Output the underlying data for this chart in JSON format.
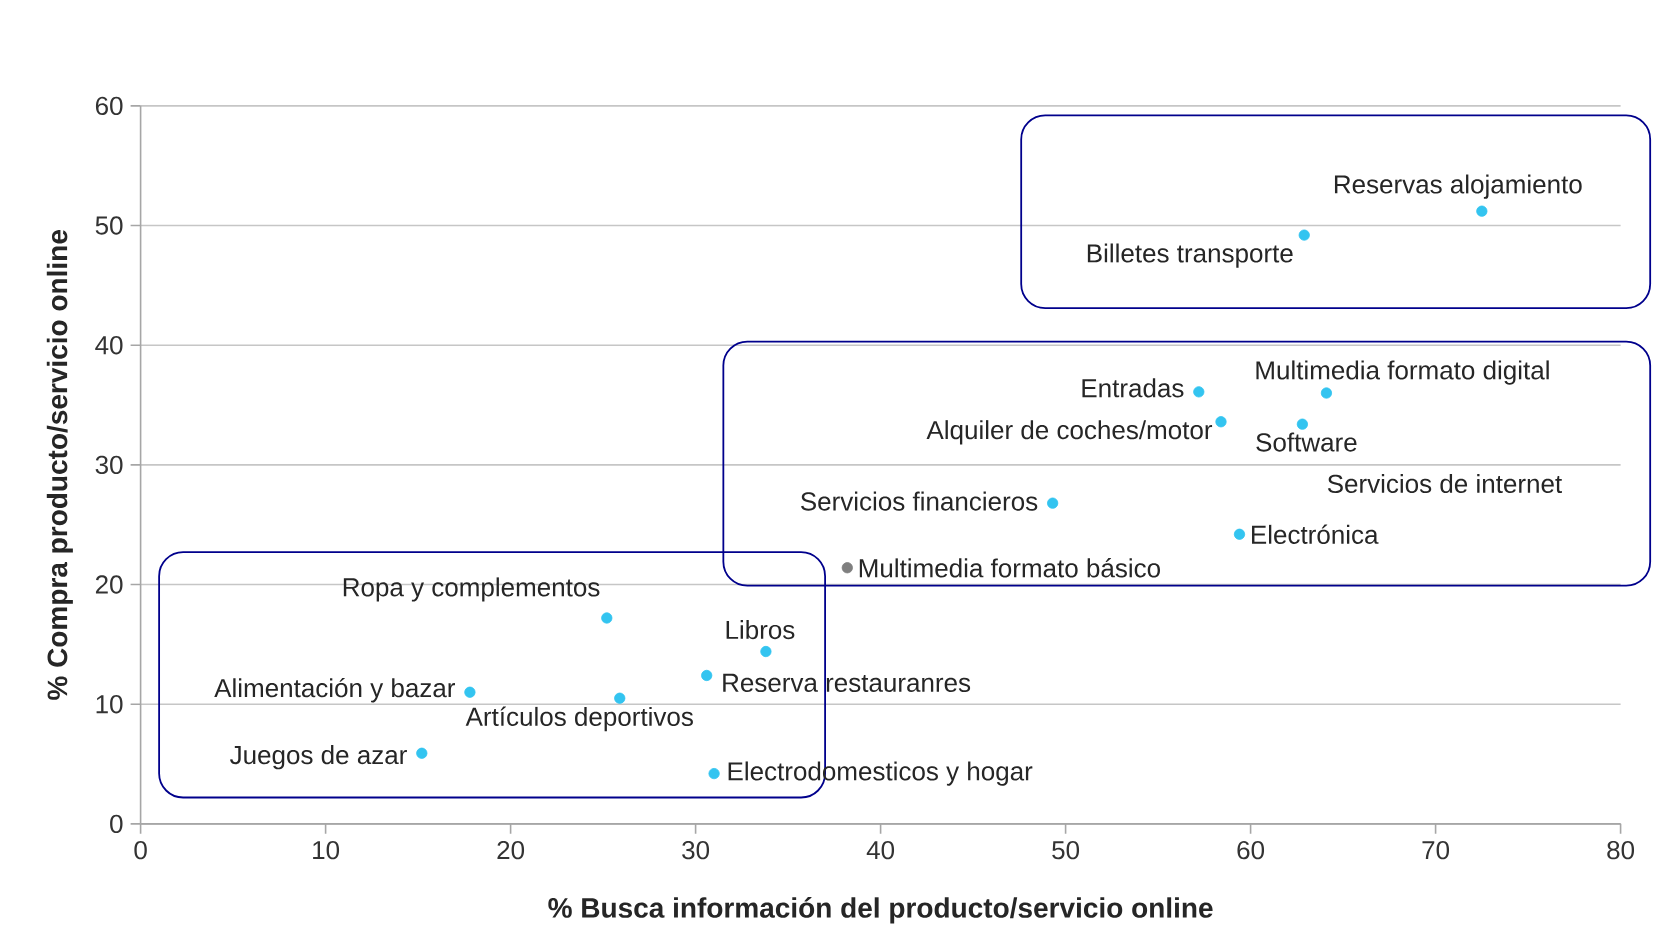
{
  "chart_data": {
    "type": "scatter",
    "xlabel": "% Busca información del  producto/servicio online",
    "ylabel": "% Compra producto/servicio online",
    "x": [
      72.5,
      62.9,
      57.2,
      64.1,
      58.4,
      62.8,
      49.3,
      59.4,
      38.2,
      25.2,
      33.8,
      30.6,
      17.8,
      25.9,
      15.2,
      31.0
    ],
    "values": [
      51.2,
      49.2,
      36.1,
      36.0,
      33.6,
      33.4,
      26.8,
      24.2,
      21.4,
      17.2,
      14.4,
      12.4,
      11.0,
      10.5,
      5.9,
      4.2
    ],
    "colors": [
      "#33c4f0",
      "#33c4f0",
      "#33c4f0",
      "#33c4f0",
      "#33c4f0",
      "#33c4f0",
      "#33c4f0",
      "#33c4f0",
      "#7f7f7f",
      "#33c4f0",
      "#33c4f0",
      "#33c4f0",
      "#33c4f0",
      "#33c4f0",
      "#33c4f0",
      "#33c4f0"
    ],
    "marker": "circle",
    "xlim": [
      0,
      80
    ],
    "xticks": [
      0,
      10,
      20,
      30,
      40,
      50,
      60,
      70,
      80
    ],
    "ylim": [
      0,
      60
    ],
    "yticks": [
      0,
      10,
      20,
      30,
      40,
      50,
      60
    ],
    "grid": "y",
    "annotations": [
      {
        "text": "Reservas alojamiento",
        "x": 72.5,
        "y": 51.2
      },
      {
        "text": "Billetes transporte",
        "x": 62.9,
        "y": 49.2
      },
      {
        "text": "Entradas",
        "x": 57.2,
        "y": 36.1
      },
      {
        "text": "Multimedia formato digital",
        "x": 64.1,
        "y": 36.0
      },
      {
        "text": "Alquiler de coches/motor",
        "x": 58.4,
        "y": 33.6
      },
      {
        "text": "Software",
        "x": 62.8,
        "y": 33.4
      },
      {
        "text": "Servicios financieros",
        "x": 49.3,
        "y": 26.8
      },
      {
        "text": "Electrónica",
        "x": 59.4,
        "y": 24.2
      },
      {
        "text": "Multimedia formato básico",
        "x": 38.2,
        "y": 21.4
      },
      {
        "text": "Ropa y complementos",
        "x": 25.2,
        "y": 17.2
      },
      {
        "text": "Libros",
        "x": 33.8,
        "y": 14.4
      },
      {
        "text": "Reserva restauranres",
        "x": 30.6,
        "y": 12.4
      },
      {
        "text": "Alimentación y bazar",
        "x": 17.8,
        "y": 11.0
      },
      {
        "text": "Artículos deportivos",
        "x": 25.9,
        "y": 10.5
      },
      {
        "text": "Juegos de azar",
        "x": 15.2,
        "y": 5.9
      },
      {
        "text": "Electrodomesticos y hogar",
        "x": 31.0,
        "y": 4.2
      },
      "Servicios de internet"
    ]
  }
}
